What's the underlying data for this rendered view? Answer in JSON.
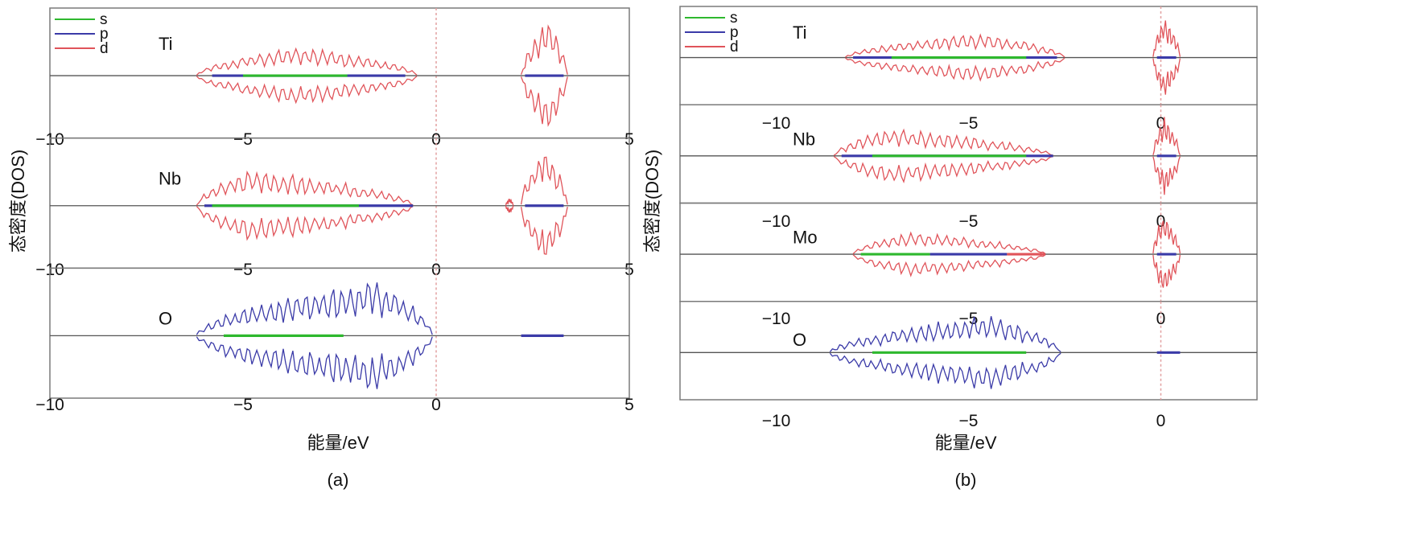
{
  "colors": {
    "s": "#2eb82e",
    "p": "#3b3ba8",
    "d": "#e0545a",
    "frame": "#7a7a7a",
    "baseline": "#555555",
    "zero_line": "#e2a0a0"
  },
  "chart_data": [
    {
      "panel_label": "(a)",
      "type": "line",
      "xlabel": "能量/eV",
      "ylabel": "态密度(DOS)",
      "xlim": [
        -10,
        5
      ],
      "xticks": [
        "−10",
        "−5",
        "0",
        "5"
      ],
      "legend": {
        "placement": "top-left",
        "entries": [
          "s",
          "p",
          "d"
        ]
      },
      "subplots": [
        {
          "name": "Ti",
          "envelopes": [
            {
              "series": "d",
              "start": -6.2,
              "end": -0.5,
              "amp": 0.45,
              "peak": -3.6,
              "seed": 1
            },
            {
              "series": "d",
              "start": 2.2,
              "end": 3.4,
              "amp": 0.85,
              "peak": 2.9,
              "seed": 2
            }
          ],
          "bands": [
            {
              "series": "p",
              "start": -5.8,
              "end": -0.8
            },
            {
              "series": "s",
              "start": -5.0,
              "end": -2.3
            },
            {
              "series": "p",
              "start": 2.3,
              "end": 3.3
            }
          ]
        },
        {
          "name": "Nb",
          "envelopes": [
            {
              "series": "d",
              "start": -6.2,
              "end": -0.6,
              "amp": 0.55,
              "peak": -4.8,
              "seed": 3
            },
            {
              "series": "d",
              "start": 1.8,
              "end": 2.0,
              "amp": 0.12,
              "peak": 1.9,
              "seed": 4
            },
            {
              "series": "d",
              "start": 2.2,
              "end": 3.4,
              "amp": 0.9,
              "peak": 2.8,
              "seed": 5
            }
          ],
          "bands": [
            {
              "series": "p",
              "start": -6.0,
              "end": -0.6
            },
            {
              "series": "s",
              "start": -5.8,
              "end": -2.0
            },
            {
              "series": "p",
              "start": 2.3,
              "end": 3.3
            }
          ]
        },
        {
          "name": "O",
          "envelopes": [
            {
              "series": "p",
              "start": -6.2,
              "end": -0.1,
              "amp": 0.85,
              "peak": -1.6,
              "seed": 6
            }
          ],
          "bands": [
            {
              "series": "s",
              "start": -5.5,
              "end": -2.4
            },
            {
              "series": "p",
              "start": 2.2,
              "end": 3.3
            }
          ]
        }
      ]
    },
    {
      "panel_label": "(b)",
      "type": "line",
      "xlabel": "能量/eV",
      "ylabel": "态密度(DOS)",
      "xlim": [
        -12.5,
        2.5
      ],
      "xticks": [
        "−10",
        "−5",
        "0"
      ],
      "legend": {
        "placement": "top-left",
        "entries": [
          "s",
          "p",
          "d"
        ]
      },
      "subplots": [
        {
          "name": "Ti",
          "envelopes": [
            {
              "series": "d",
              "start": -8.2,
              "end": -2.5,
              "amp": 0.5,
              "peak": -4.8,
              "seed": 7
            },
            {
              "series": "d",
              "start": -0.2,
              "end": 0.5,
              "amp": 0.85,
              "peak": 0.1,
              "seed": 8
            }
          ],
          "bands": [
            {
              "series": "p",
              "start": -8.0,
              "end": -2.7
            },
            {
              "series": "s",
              "start": -7.0,
              "end": -3.5
            },
            {
              "series": "p",
              "start": -0.1,
              "end": 0.4
            }
          ]
        },
        {
          "name": "Nb",
          "envelopes": [
            {
              "series": "d",
              "start": -8.5,
              "end": -2.8,
              "amp": 0.55,
              "peak": -7.0,
              "seed": 9
            },
            {
              "series": "d",
              "start": -0.2,
              "end": 0.5,
              "amp": 0.8,
              "peak": 0.1,
              "seed": 10
            }
          ],
          "bands": [
            {
              "series": "p",
              "start": -8.3,
              "end": -2.8
            },
            {
              "series": "s",
              "start": -7.5,
              "end": -3.5
            },
            {
              "series": "p",
              "start": -0.1,
              "end": 0.4
            }
          ]
        },
        {
          "name": "Mo",
          "envelopes": [
            {
              "series": "d",
              "start": -8.0,
              "end": -3.0,
              "amp": 0.45,
              "peak": -6.5,
              "seed": 11
            },
            {
              "series": "d",
              "start": -0.2,
              "end": 0.5,
              "amp": 0.8,
              "peak": 0.05,
              "seed": 12
            }
          ],
          "bands": [
            {
              "series": "s",
              "start": -7.8,
              "end": -6.0
            },
            {
              "series": "p",
              "start": -6.0,
              "end": -4.0
            },
            {
              "series": "d",
              "start": -4.0,
              "end": -3.0
            },
            {
              "series": "p",
              "start": -0.1,
              "end": 0.4
            }
          ]
        },
        {
          "name": "O",
          "envelopes": [
            {
              "series": "p",
              "start": -8.6,
              "end": -2.6,
              "amp": 0.75,
              "peak": -4.5,
              "seed": 13
            }
          ],
          "bands": [
            {
              "series": "s",
              "start": -7.5,
              "end": -3.5
            },
            {
              "series": "p",
              "start": -0.1,
              "end": 0.5
            }
          ]
        }
      ]
    }
  ]
}
